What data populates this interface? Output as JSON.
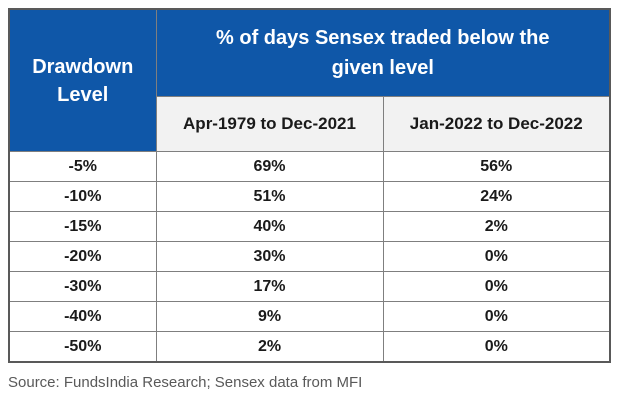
{
  "table": {
    "corner_header": "Drawdown Level",
    "main_header": "% of days Sensex traded below the given level",
    "sub_headers": [
      "Apr-1979 to Dec-2021",
      "Jan-2022 to Dec-2022"
    ],
    "rows": [
      {
        "level": "-5%",
        "period1": "69%",
        "period2": "56%"
      },
      {
        "level": "-10%",
        "period1": "51%",
        "period2": "24%"
      },
      {
        "level": "-15%",
        "period1": "40%",
        "period2": "2%"
      },
      {
        "level": "-20%",
        "period1": "30%",
        "period2": "0%"
      },
      {
        "level": "-30%",
        "period1": "17%",
        "period2": "0%"
      },
      {
        "level": "-40%",
        "period1": "9%",
        "period2": "0%"
      },
      {
        "level": "-50%",
        "period1": "2%",
        "period2": "0%"
      }
    ],
    "colors": {
      "header_blue": "#0F57A8",
      "subheader_bg": "#F2F2F2",
      "outer_border": "#595959",
      "inner_border": "#7F7F7F",
      "header_text": "#FFFFFF",
      "cell_text": "#1A1A1A",
      "source_text": "#595959"
    }
  },
  "footer": {
    "source": "Source: FundsIndia Research; Sensex data from MFI"
  },
  "chart_data": {
    "type": "table",
    "title": "% of days Sensex traded below the given level",
    "columns": [
      "Drawdown Level",
      "Apr-1979 to Dec-2021",
      "Jan-2022 to Dec-2022"
    ],
    "rows": [
      [
        "-5%",
        "69%",
        "56%"
      ],
      [
        "-10%",
        "51%",
        "24%"
      ],
      [
        "-15%",
        "40%",
        "2%"
      ],
      [
        "-20%",
        "30%",
        "0%"
      ],
      [
        "-30%",
        "17%",
        "0%"
      ],
      [
        "-40%",
        "9%",
        "0%"
      ],
      [
        "-50%",
        "2%",
        "0%"
      ]
    ],
    "source": "Source: FundsIndia Research; Sensex data from MFI"
  }
}
